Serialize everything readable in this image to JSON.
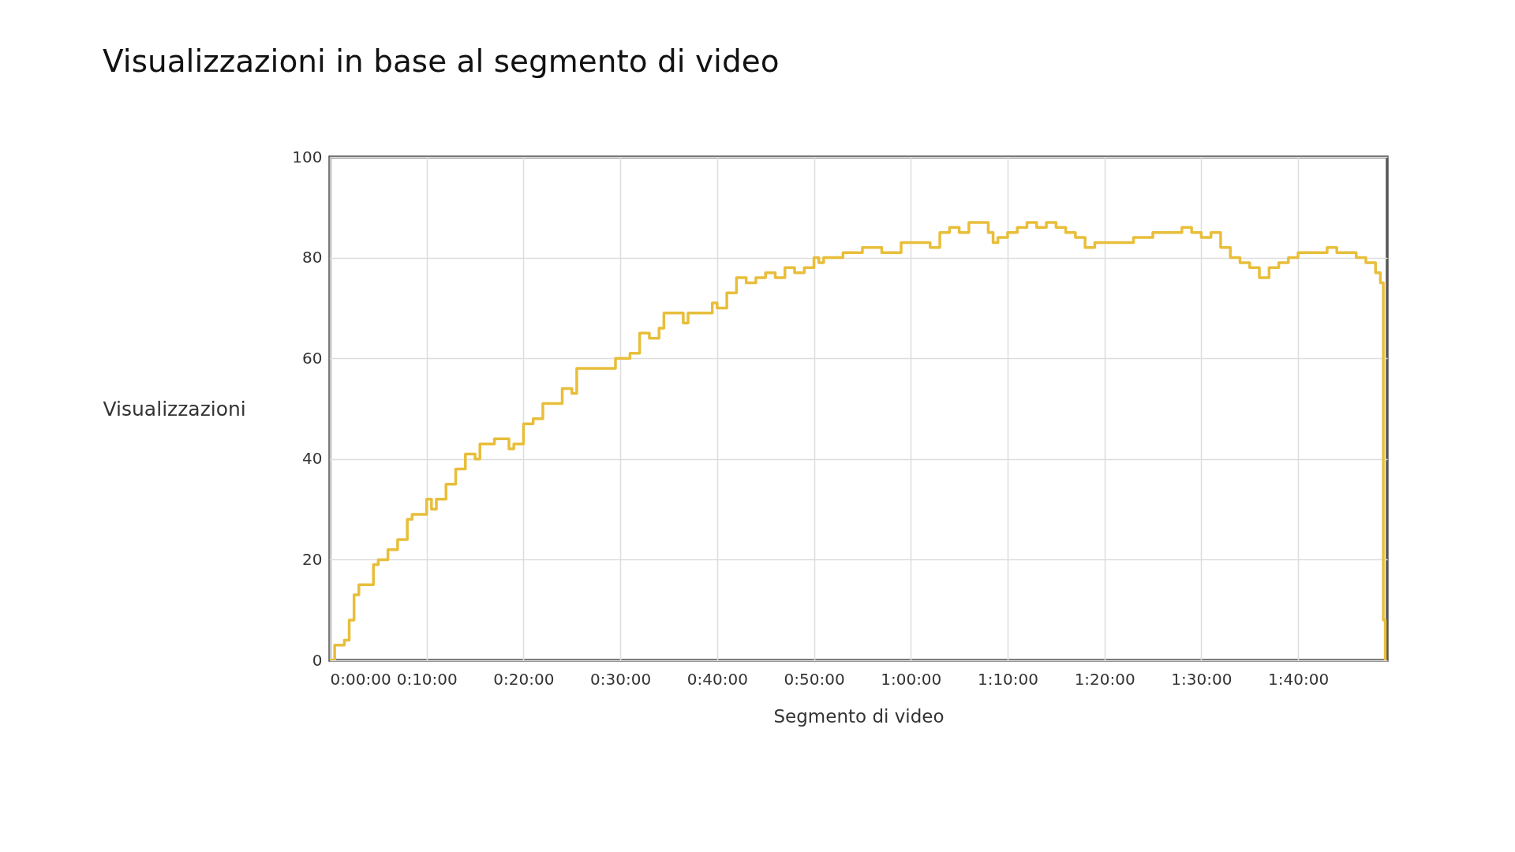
{
  "chart_data": {
    "type": "step",
    "title": "Visualizzazioni in base al segmento di video",
    "xlabel": "Segmento di video",
    "ylabel": "Visualizzazioni",
    "x": [
      0,
      0.5,
      1.5,
      2,
      2.5,
      3,
      4,
      4.5,
      5,
      6,
      7,
      8,
      8.5,
      9.5,
      10,
      10.5,
      11,
      12,
      13,
      14,
      15,
      15.5,
      17,
      18,
      18.5,
      19,
      20,
      21,
      22,
      23,
      24,
      25,
      25.5,
      27,
      28,
      29.5,
      31,
      32,
      33,
      34,
      34.5,
      36,
      36.5,
      37,
      39,
      39.5,
      40,
      41,
      42,
      43,
      44,
      45,
      46,
      47,
      48,
      49,
      50,
      50.5,
      51,
      53,
      55,
      57,
      58,
      59,
      61,
      62,
      63,
      64,
      65,
      66,
      67,
      68,
      68.5,
      69,
      70,
      71,
      72,
      73,
      74,
      75,
      76,
      77,
      78,
      79,
      80,
      83,
      85,
      87,
      88,
      89,
      90,
      91,
      92,
      93,
      94,
      95,
      96,
      97,
      98,
      99,
      100,
      102,
      103,
      104,
      105,
      106,
      107,
      108,
      108.5,
      108.8,
      109
    ],
    "series": [
      {
        "color": "#e8be3a",
        "values": [
          0,
          3,
          4,
          8,
          13,
          15,
          15,
          19,
          20,
          22,
          24,
          28,
          29,
          29,
          32,
          30,
          32,
          35,
          38,
          41,
          40,
          43,
          44,
          44,
          42,
          43,
          47,
          48,
          51,
          51,
          54,
          53,
          58,
          58,
          58,
          60,
          61,
          65,
          64,
          66,
          69,
          69,
          67,
          69,
          69,
          71,
          70,
          73,
          76,
          75,
          76,
          77,
          76,
          78,
          77,
          78,
          80,
          79,
          80,
          81,
          82,
          81,
          81,
          83,
          83,
          82,
          85,
          86,
          85,
          87,
          87,
          85,
          83,
          84,
          85,
          86,
          87,
          86,
          87,
          86,
          85,
          84,
          82,
          83,
          83,
          84,
          85,
          85,
          86,
          85,
          84,
          85,
          82,
          80,
          79,
          78,
          76,
          78,
          79,
          80,
          81,
          81,
          82,
          81,
          81,
          80,
          79,
          77,
          75,
          8,
          0
        ]
      }
    ],
    "xlim": [
      0,
      109.2
    ],
    "xticks": [
      {
        "value": 0,
        "label": "0:00:00"
      },
      {
        "value": 10,
        "label": "0:10:00"
      },
      {
        "value": 20,
        "label": "0:20:00"
      },
      {
        "value": 30,
        "label": "0:30:00"
      },
      {
        "value": 40,
        "label": "0:40:00"
      },
      {
        "value": 50,
        "label": "0:50:00"
      },
      {
        "value": 60,
        "label": "1:00:00"
      },
      {
        "value": 70,
        "label": "1:10:00"
      },
      {
        "value": 80,
        "label": "1:20:00"
      },
      {
        "value": 90,
        "label": "1:30:00"
      },
      {
        "value": 100,
        "label": "1:40:00"
      }
    ],
    "ylim": [
      0,
      100
    ],
    "yticks": [
      0,
      20,
      40,
      60,
      80,
      100
    ],
    "grid": true
  }
}
